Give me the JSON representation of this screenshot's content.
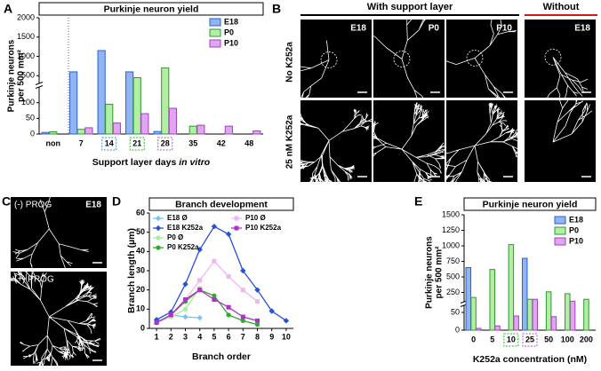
{
  "panel_labels": [
    "A",
    "B",
    "C",
    "D",
    "E"
  ],
  "micrographs": {
    "B": {
      "headers": [
        "With support layer",
        "Without"
      ],
      "columns": [
        "E18",
        "P0",
        "P10",
        "E18"
      ],
      "rows": [
        "No K252a",
        "25 nM K252a"
      ]
    },
    "C": {
      "condition": "E18",
      "rows": [
        "(-) PROG",
        "(+) PROG"
      ]
    }
  },
  "chart_data": [
    {
      "type": "bar",
      "title": "Purkinje neuron yield",
      "ylabel": [
        "Purkinje neurons",
        "per 500 mm²"
      ],
      "xlabel": "Support layer days",
      "xlabel_italic": "in vitro",
      "categories": [
        "non",
        "7",
        "14",
        "21",
        "28",
        "35",
        "42",
        "48"
      ],
      "category_box_colors": [
        null,
        null,
        "#3a8ee6",
        "#2fb02f",
        "#b94fd6",
        null,
        null,
        null
      ],
      "series": [
        {
          "name": "E18",
          "color": "#8fb6f2",
          "edge": "#2f5fd0",
          "values": [
            5,
            600,
            1150,
            600,
            8,
            null,
            null,
            null
          ]
        },
        {
          "name": "P0",
          "color": "#b4eda6",
          "edge": "#2c9a2c",
          "values": [
            7,
            15,
            95,
            450,
            700,
            25,
            null,
            null
          ]
        },
        {
          "name": "P10",
          "color": "#e0a6ef",
          "edge": "#a23fc0",
          "values": [
            null,
            20,
            35,
            65,
            82,
            28,
            25,
            10
          ]
        }
      ],
      "ylim": [
        0,
        2000
      ],
      "ybreak": [
        150,
        300
      ],
      "yticks": [
        0,
        50,
        100,
        500,
        1000,
        1500,
        2000
      ],
      "legend": "upper right"
    },
    {
      "type": "line",
      "title": "Branch development",
      "xlabel": "Branch order",
      "ylabel": "Branch length (µm)",
      "x": [
        1,
        2,
        3,
        4,
        5,
        6,
        7,
        8,
        9,
        10
      ],
      "series": [
        {
          "name": "E18 Ø",
          "color": "#7fc3f2",
          "marker": "diamond",
          "values": [
            3,
            7,
            6,
            5.5,
            null,
            null,
            null,
            null,
            null,
            null
          ]
        },
        {
          "name": "E18 K252a",
          "color": "#2a4fd8",
          "marker": "diamond",
          "values": [
            4.5,
            8.5,
            23,
            41,
            53,
            49,
            30,
            20,
            9,
            4
          ]
        },
        {
          "name": "P0 Ø",
          "color": "#a6ef9c",
          "marker": "circle",
          "values": [
            3,
            6,
            10,
            21,
            null,
            null,
            null,
            null,
            null,
            null
          ]
        },
        {
          "name": "P0 K252a",
          "color": "#2fa82f",
          "marker": "circle",
          "values": [
            3,
            7,
            14,
            20,
            17,
            7,
            4,
            2,
            null,
            null
          ]
        },
        {
          "name": "P10 Ø",
          "color": "#f0b6f0",
          "marker": "square",
          "values": [
            3,
            7,
            15,
            25,
            35,
            27,
            20,
            14,
            null,
            null
          ]
        },
        {
          "name": "P10 K252a",
          "color": "#b42fc8",
          "marker": "square",
          "values": [
            3,
            7,
            15,
            20,
            15,
            11,
            6,
            4,
            null,
            null
          ]
        }
      ],
      "xlim": [
        0.5,
        10.5
      ],
      "xticks": [
        1,
        2,
        3,
        4,
        5,
        6,
        7,
        8,
        9,
        10
      ],
      "ylim": [
        0,
        60
      ],
      "yticks": [
        0,
        10,
        20,
        30,
        40,
        50,
        60
      ]
    },
    {
      "type": "bar",
      "title": "Purkinje neuron yield",
      "ylabel": [
        "Purkinje neurons",
        "per 500 mm²"
      ],
      "xlabel": "K252a concentration (nM)",
      "categories": [
        "0",
        "5",
        "10",
        "25",
        "50",
        "100",
        "200"
      ],
      "category_box_colors": [
        null,
        null,
        "#2fb02f",
        "#b94fd6",
        null,
        null,
        null
      ],
      "series": [
        {
          "name": "E18",
          "color": "#8fb6f2",
          "edge": "#2f5fd0",
          "values": [
            650,
            null,
            null,
            800,
            null,
            null,
            null
          ]
        },
        {
          "name": "P0",
          "color": "#b4eda6",
          "edge": "#2c9a2c",
          "values": [
            170,
            620,
            1020,
            140,
            260,
            230,
            140
          ]
        },
        {
          "name": "P10",
          "color": "#e0a6ef",
          "edge": "#a23fc0",
          "values": [
            5,
            12,
            40,
            140,
            38,
            110,
            null
          ]
        }
      ],
      "ylim": [
        0,
        1500
      ],
      "ybreak": [
        70,
        100
      ],
      "yticks": [
        0,
        50,
        250,
        500,
        750,
        1000,
        1250,
        1500
      ],
      "legend": "upper right"
    }
  ]
}
